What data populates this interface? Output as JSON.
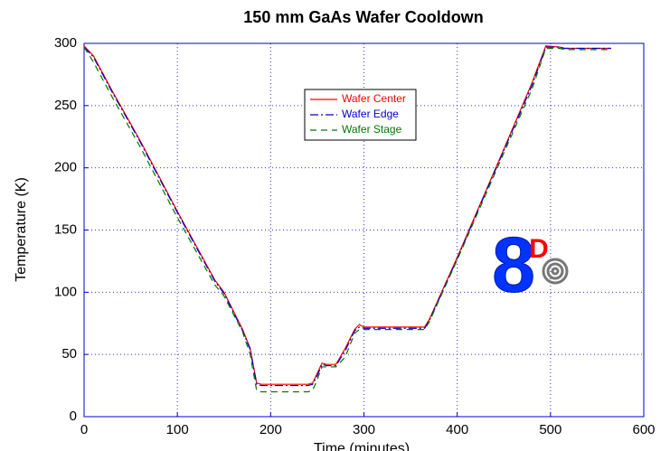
{
  "chart_data": {
    "type": "line",
    "title": "150 mm GaAs Wafer Cooldown",
    "xlabel": "Time (minutes)",
    "ylabel": "Temperature (K)",
    "x": [
      0,
      10,
      30,
      60,
      100,
      140,
      150,
      170,
      178,
      185,
      190,
      240,
      245,
      250,
      255,
      260,
      270,
      280,
      290,
      295,
      300,
      310,
      365,
      370,
      400,
      450,
      480,
      495,
      510,
      515,
      565
    ],
    "series": [
      {
        "name": "Wafer Center",
        "color": "#ff0000",
        "dash": "none",
        "values": [
          298,
          290,
          262,
          222,
          165,
          110,
          100,
          70,
          55,
          27,
          26,
          26,
          27,
          35,
          43,
          42,
          42,
          55,
          70,
          74,
          72,
          72,
          72,
          78,
          128,
          215,
          268,
          298,
          297,
          296,
          296
        ]
      },
      {
        "name": "Wafer Edge",
        "color": "#0000cc",
        "dash": "9 3 2 3",
        "values": [
          297,
          289,
          261,
          221,
          164,
          109,
          99,
          69,
          54,
          26,
          25,
          25,
          26,
          33,
          42,
          41,
          41,
          53,
          69,
          72,
          71,
          71,
          71,
          77,
          127,
          214,
          266,
          297,
          297,
          296,
          296
        ]
      },
      {
        "name": "Wafer Stage",
        "color": "#007700",
        "dash": "7 5",
        "values": [
          297,
          285,
          257,
          217,
          160,
          106,
          97,
          68,
          50,
          21,
          20,
          20,
          21,
          30,
          40,
          40,
          40,
          48,
          67,
          70,
          70,
          70,
          70,
          76,
          126,
          212,
          263,
          296,
          296,
          295,
          295
        ]
      }
    ],
    "xlim": [
      0,
      600
    ],
    "xticks": [
      0,
      100,
      200,
      300,
      400,
      500,
      600
    ],
    "ylim": [
      0,
      300
    ],
    "yticks": [
      0,
      50,
      100,
      150,
      200,
      250,
      300
    ],
    "grid": true,
    "logo": {
      "digit": "8",
      "letter": "D"
    }
  }
}
